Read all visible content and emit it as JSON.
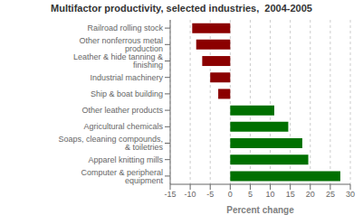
{
  "chart_data": {
    "type": "bar",
    "orientation": "horizontal",
    "title": "Multifactor productivity, selected industries,  2004-2005",
    "categories": [
      "Computer & peripheral equipment",
      "Apparel knitting mills",
      "Soaps, cleaning compounds, & toiletries",
      "Agricultural chemicals",
      "Other leather products",
      "Ship & boat building",
      "Industrial machinery",
      "Leather & hide tanning & finishing",
      "Other nonferrous metal production",
      "Railroad rolling stock"
    ],
    "values": [
      27.5,
      19.5,
      18.0,
      14.5,
      11.0,
      -3.0,
      -5.0,
      -7.0,
      -8.5,
      -9.5
    ],
    "colors": [
      "#007000",
      "#007000",
      "#007000",
      "#007000",
      "#007000",
      "#8B0000",
      "#8B0000",
      "#8B0000",
      "#8B0000",
      "#8B0000"
    ],
    "xlabel": "Percent change",
    "xlim": [
      -15,
      30
    ],
    "xticks": [
      -15,
      -10,
      -5,
      0,
      5,
      10,
      15,
      20,
      25,
      30
    ],
    "grid": true
  }
}
